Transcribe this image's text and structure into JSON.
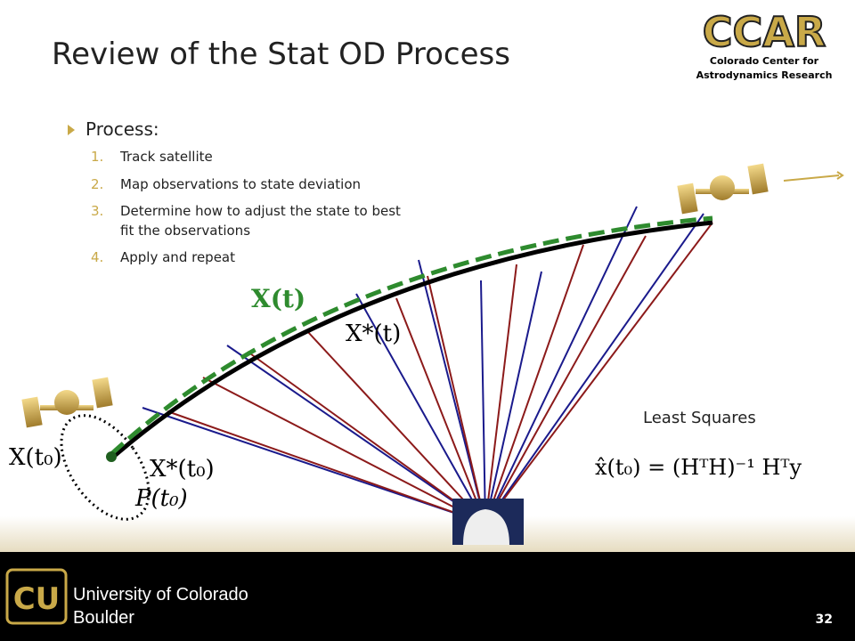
{
  "header": {
    "title": "Review of the Stat OD Process",
    "logo": "CCAR",
    "logo_line1": "Colorado Center for",
    "logo_line2": "Astrodynamics Research"
  },
  "body": {
    "bullet": "Process:",
    "items": [
      {
        "num": "1.",
        "text": "Track satellite"
      },
      {
        "num": "2.",
        "text": "Map observations to state deviation"
      },
      {
        "num": "3.",
        "text": "Determine how to adjust the state to best",
        "text2": "fit the observations"
      },
      {
        "num": "4.",
        "text": "Apply and repeat"
      }
    ]
  },
  "diagram": {
    "x_t": "X(t)",
    "x_star_t": "X*(t)",
    "x_t0": "X(t₀)",
    "x_star_t0": "X*(t₀)",
    "p_t0": "P(t₀)",
    "ls_title": "Least Squares",
    "equation": "x̂(t₀) = (HᵀH)⁻¹ Hᵀy"
  },
  "footer": {
    "line1": "University of Colorado",
    "line2": "Boulder",
    "page": "32"
  }
}
